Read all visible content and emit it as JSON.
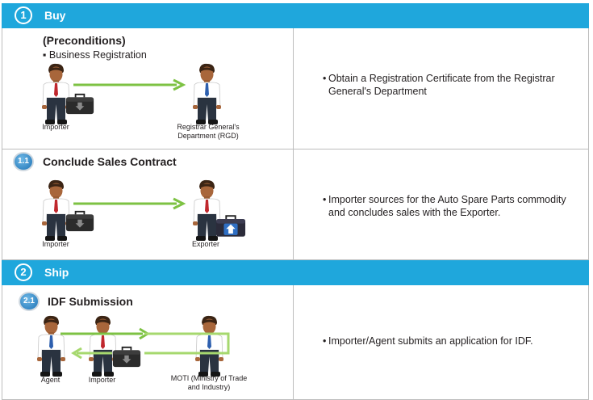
{
  "sections": {
    "buy": {
      "number": "1",
      "title": "Buy"
    },
    "ship": {
      "number": "2",
      "title": "Ship"
    }
  },
  "rows": {
    "preconditions": {
      "title": "(Preconditions)",
      "sub_item": "Business Registration",
      "from_label": "Importer",
      "to_label_line1": "Registrar General's",
      "to_label_line2": "Department (RGD)",
      "desc_line1": "Obtain a Registration Certificate from the Registrar",
      "desc_line2": "General's Department"
    },
    "sales": {
      "step": "1.1",
      "title": "Conclude Sales Contract",
      "from_label": "Importer",
      "to_label": "Exporter",
      "desc_line1": "Importer sources for the Auto Spare Parts commodity",
      "desc_line2": "and concludes sales with the Exporter."
    },
    "idf": {
      "step": "2.1",
      "title": "IDF Submission",
      "agent_label": "Agent",
      "importer_label": "Importer",
      "moti_label_line1": "MOTI (Ministry of Trade",
      "moti_label_line2": "and Industry)",
      "desc_line1": "Importer/Agent submits an application for IDF."
    }
  },
  "colors": {
    "header": "#1fa7dc",
    "arrow": "#7dc243",
    "arrow_light": "#a6d86e",
    "badge": "#1d73b6"
  },
  "icons": [
    "person-icon",
    "briefcase-icon",
    "arrow-right-icon",
    "arrow-left-icon"
  ]
}
